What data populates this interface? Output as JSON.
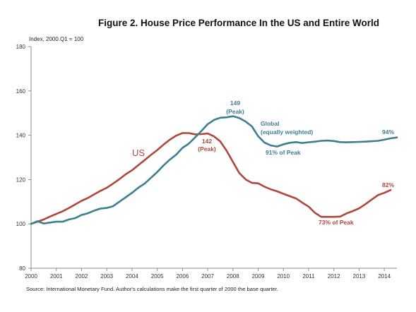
{
  "chart_data": {
    "type": "line",
    "title": "Figure 2. House Price Performance In the US and Entire World",
    "ylabel": "Index, 2000.Q1 = 100",
    "source": "Source: International Monetary Fund. Author's calculations make the first quarter of 2000 the base quarter.",
    "ylim": [
      80,
      180
    ],
    "xlim": [
      2000,
      2014.5
    ],
    "yticks": [
      "80",
      "100",
      "120",
      "140",
      "160",
      "180"
    ],
    "xticks": [
      "2000",
      "2001",
      "2002",
      "2003",
      "2004",
      "2005",
      "2006",
      "2007",
      "2008",
      "2009",
      "2010",
      "2011",
      "2012",
      "2013",
      "2014"
    ],
    "grid": false,
    "series": [
      {
        "name": "US",
        "color": "#b0473d",
        "x": [
          2000,
          2000.25,
          2000.5,
          2000.75,
          2001,
          2001.25,
          2001.5,
          2001.75,
          2002,
          2002.25,
          2002.5,
          2002.75,
          2003,
          2003.25,
          2003.5,
          2003.75,
          2004,
          2004.25,
          2004.5,
          2004.75,
          2005,
          2005.25,
          2005.5,
          2005.75,
          2006,
          2006.25,
          2006.5,
          2006.75,
          2007,
          2007.25,
          2007.5,
          2007.75,
          2008,
          2008.25,
          2008.5,
          2008.75,
          2009,
          2009.25,
          2009.5,
          2009.75,
          2010,
          2010.25,
          2010.5,
          2010.75,
          2011,
          2011.25,
          2011.5,
          2011.75,
          2012,
          2012.25,
          2012.5,
          2012.75,
          2013,
          2013.25,
          2013.5,
          2013.75,
          2014,
          2014.25
        ],
        "values": [
          100,
          101,
          102,
          103.3,
          104.5,
          105.7,
          107.2,
          108.8,
          110.4,
          111.7,
          113.3,
          114.9,
          116.3,
          118.2,
          120.2,
          122.4,
          124.2,
          126.5,
          128.8,
          131.1,
          133.3,
          135.8,
          138,
          139.8,
          141,
          141,
          140.4,
          140.5,
          140.8,
          139.5,
          137.2,
          133,
          128,
          123,
          120.1,
          118.5,
          118.3,
          116.8,
          115.6,
          114.7,
          113.6,
          112.5,
          111.5,
          109.6,
          107.8,
          105,
          103.2,
          103.2,
          103.2,
          103.3,
          104.7,
          105.8,
          107,
          108.9,
          111,
          113,
          114,
          115.3
        ]
      },
      {
        "name": "Global (equally weighted)",
        "color": "#3e7d92",
        "x": [
          2000,
          2000.25,
          2000.5,
          2000.75,
          2001,
          2001.25,
          2001.5,
          2001.75,
          2002,
          2002.25,
          2002.5,
          2002.75,
          2003,
          2003.25,
          2003.5,
          2003.75,
          2004,
          2004.25,
          2004.5,
          2004.75,
          2005,
          2005.25,
          2005.5,
          2005.75,
          2006,
          2006.25,
          2006.5,
          2006.75,
          2007,
          2007.25,
          2007.5,
          2007.75,
          2008,
          2008.25,
          2008.5,
          2008.75,
          2009,
          2009.25,
          2009.5,
          2009.75,
          2010,
          2010.25,
          2010.5,
          2010.75,
          2011,
          2011.25,
          2011.5,
          2011.75,
          2012,
          2012.25,
          2012.5,
          2012.75,
          2013,
          2013.25,
          2013.5,
          2013.75,
          2014,
          2014.25,
          2014.5
        ],
        "values": [
          100,
          101.2,
          100.2,
          100.6,
          101,
          101,
          102,
          102.6,
          104,
          104.8,
          106,
          106.9,
          107.2,
          108,
          110,
          112,
          114,
          116.3,
          118.2,
          120.8,
          123.4,
          126.4,
          129,
          131.2,
          134.3,
          136.2,
          139,
          141.9,
          145,
          146.9,
          147.9,
          148.1,
          148.6,
          147.8,
          146.2,
          144,
          139.6,
          136.7,
          135.4,
          134.9,
          135.9,
          136.6,
          136.9,
          136.5,
          136.8,
          137.1,
          137.5,
          137.6,
          137.4,
          136.9,
          136.8,
          136.9,
          137,
          137.1,
          137.3,
          137.5,
          138,
          138.6,
          139
        ]
      }
    ],
    "annotations": {
      "us_label": "US",
      "us_peak": [
        "142",
        "(Peak)"
      ],
      "us_trough": "73% of Peak",
      "us_end": "82%",
      "global_peak": [
        "149",
        "(Peak)"
      ],
      "global_label": [
        "Global",
        "(equally weighted)"
      ],
      "global_trough": "91% of Peak",
      "global_end": "94%"
    }
  }
}
